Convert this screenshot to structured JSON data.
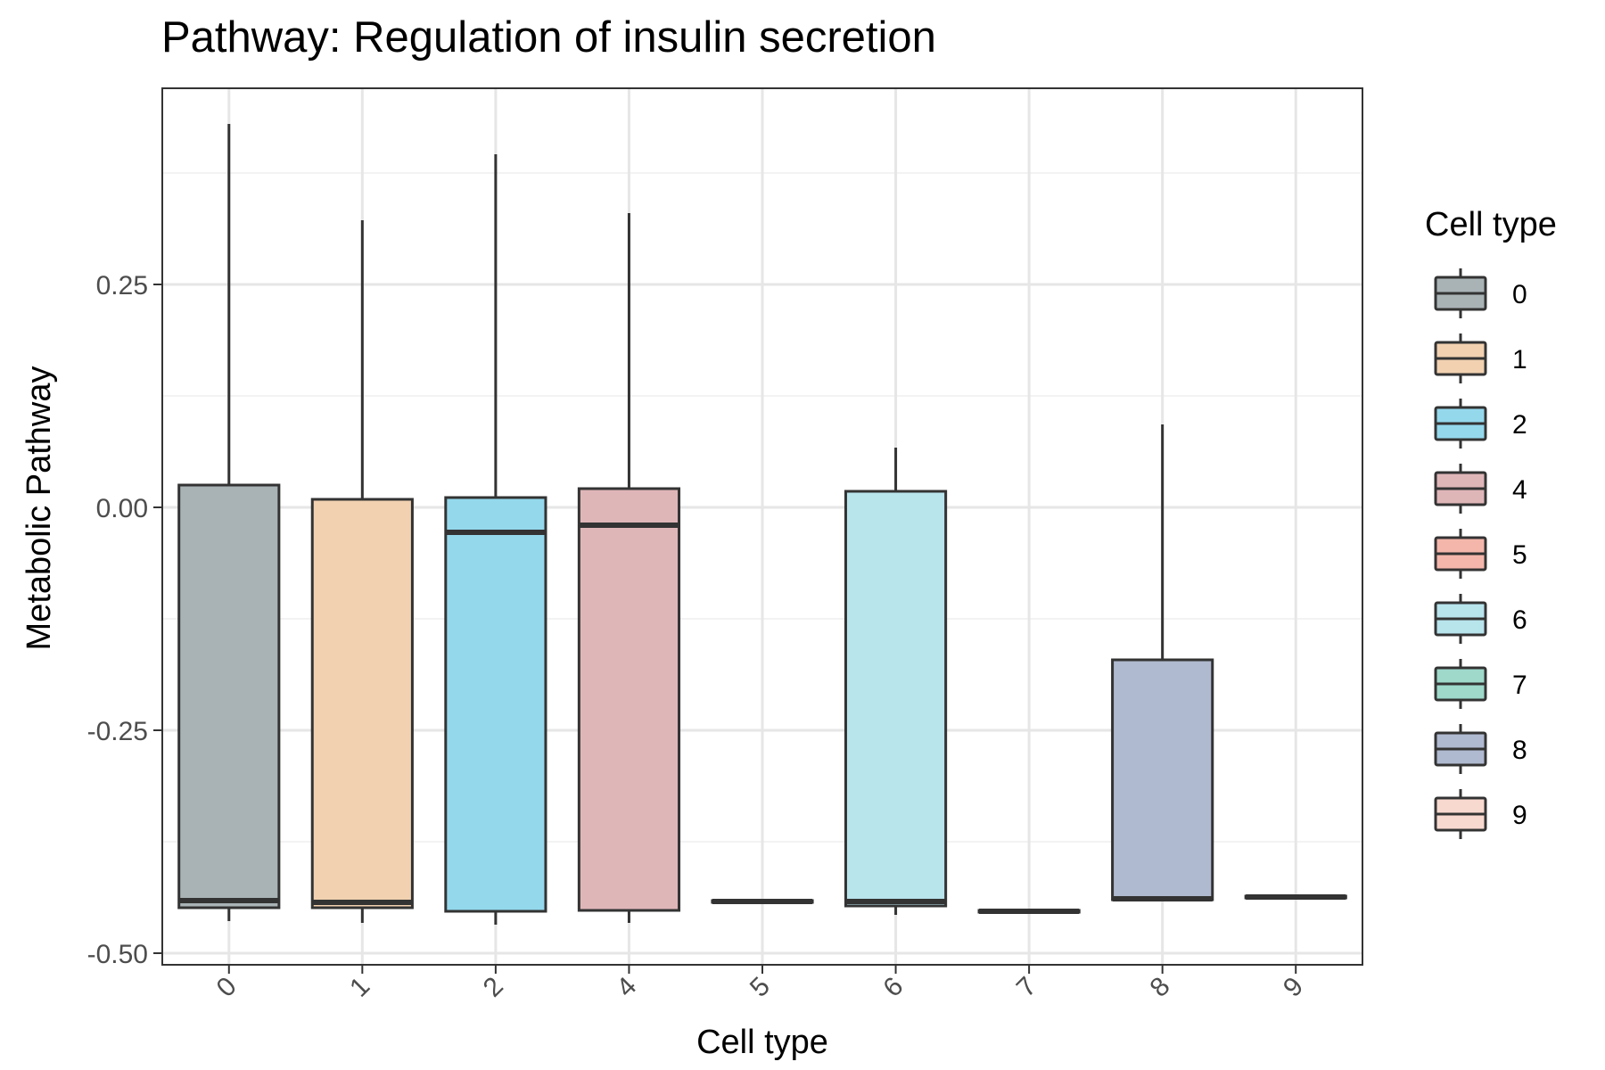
{
  "chart_data": {
    "type": "box",
    "title": "Pathway: Regulation of insulin secretion",
    "xlabel": "Cell type",
    "ylabel": "Metabolic Pathway",
    "categories": [
      "0",
      "1",
      "2",
      "4",
      "5",
      "6",
      "7",
      "8",
      "9"
    ],
    "y_ticks": [
      0.25,
      0.0,
      -0.25,
      -0.5
    ],
    "y_tick_labels": [
      "0.25",
      "0.00",
      "-0.25",
      "-0.50"
    ],
    "ylim": [
      -0.513,
      0.47
    ],
    "grid": true,
    "legend": {
      "title": "Cell type",
      "position": "right",
      "entries": [
        "0",
        "1",
        "2",
        "4",
        "5",
        "6",
        "7",
        "8",
        "9"
      ]
    },
    "boxes": [
      {
        "category": "0",
        "min": -0.464,
        "q1": -0.449,
        "median": -0.441,
        "q3": 0.025,
        "max": 0.43,
        "color": "#A9B3B6"
      },
      {
        "category": "1",
        "min": -0.466,
        "q1": -0.449,
        "median": -0.443,
        "q3": 0.009,
        "max": 0.322,
        "color": "#F1D1B0"
      },
      {
        "category": "2",
        "min": -0.468,
        "q1": -0.453,
        "median": -0.028,
        "q3": 0.011,
        "max": 0.396,
        "color": "#94D8EC"
      },
      {
        "category": "4",
        "min": -0.466,
        "q1": -0.452,
        "median": -0.02,
        "q3": 0.021,
        "max": 0.33,
        "color": "#DFB6B8"
      },
      {
        "category": "5",
        "min": -0.443,
        "q1": -0.443,
        "median": -0.442,
        "q3": -0.441,
        "max": -0.441,
        "color": "#F4B6AB"
      },
      {
        "category": "6",
        "min": -0.457,
        "q1": -0.447,
        "median": -0.442,
        "q3": 0.018,
        "max": 0.067,
        "color": "#B8E4EC"
      },
      {
        "category": "7",
        "min": -0.454,
        "q1": -0.454,
        "median": -0.453,
        "q3": -0.452,
        "max": -0.452,
        "color": "#9ED9CA"
      },
      {
        "category": "8",
        "min": -0.44,
        "q1": -0.44,
        "median": -0.439,
        "q3": -0.171,
        "max": 0.093,
        "color": "#AFB9CF"
      },
      {
        "category": "9",
        "min": -0.438,
        "q1": -0.438,
        "median": -0.437,
        "q3": -0.436,
        "max": -0.436,
        "color": "#F8D9CF"
      }
    ]
  }
}
